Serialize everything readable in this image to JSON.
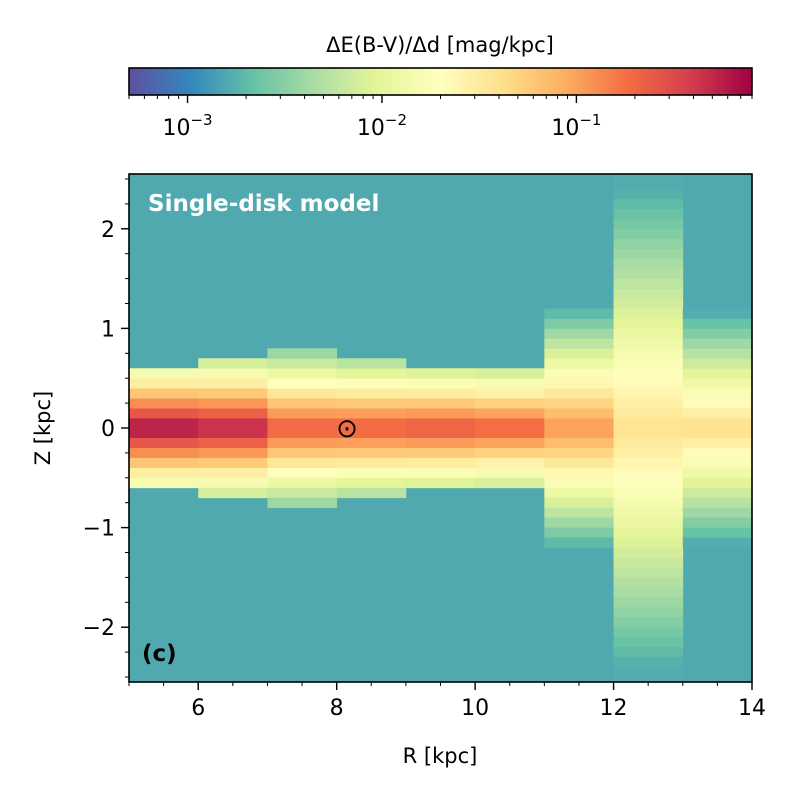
{
  "chart_data": {
    "type": "heatmap",
    "title": "",
    "xlabel": "R  [kpc]",
    "ylabel": "Z  [kpc]",
    "xlim": [
      5,
      14
    ],
    "ylim": [
      -2.55,
      2.55
    ],
    "xticks": [
      6,
      8,
      10,
      12,
      14
    ],
    "yticks": [
      -2,
      -1,
      0,
      1,
      2
    ],
    "xticklabels": [
      "6",
      "8",
      "10",
      "12",
      "14"
    ],
    "yticklabels": [
      "−2",
      "−1",
      "0",
      "1",
      "2"
    ],
    "colorbar": {
      "label": "ΔE(B-V)/Δd  [mag/kpc]",
      "scale": "log",
      "range": [
        0.0005,
        0.8
      ],
      "colormap": "Spectral_r",
      "ticks": [
        {
          "value": 0.001,
          "base": "10",
          "exp": "−3"
        },
        {
          "value": 0.01,
          "base": "10",
          "exp": "−2"
        },
        {
          "value": 0.1,
          "base": "10",
          "exp": "−1"
        }
      ]
    },
    "background_value": 0.0016,
    "r_bins": [
      {
        "r_min": 5,
        "r_max": 6,
        "midplane_value": 0.75,
        "scale_height_kpc": 0.14,
        "z_extent_kpc": 0.6
      },
      {
        "r_min": 6,
        "r_max": 7,
        "midplane_value": 0.6,
        "scale_height_kpc": 0.15,
        "z_extent_kpc": 0.65
      },
      {
        "r_min": 7,
        "r_max": 8,
        "midplane_value": 0.25,
        "scale_height_kpc": 0.18,
        "z_extent_kpc": 0.8
      },
      {
        "r_min": 8,
        "r_max": 9,
        "midplane_value": 0.25,
        "scale_height_kpc": 0.17,
        "z_extent_kpc": 0.65
      },
      {
        "r_min": 9,
        "r_max": 10,
        "midplane_value": 0.28,
        "scale_height_kpc": 0.16,
        "z_extent_kpc": 0.55
      },
      {
        "r_min": 10,
        "r_max": 11,
        "midplane_value": 0.25,
        "scale_height_kpc": 0.16,
        "z_extent_kpc": 0.55
      },
      {
        "r_min": 11,
        "r_max": 12,
        "midplane_value": 0.12,
        "scale_height_kpc": 0.28,
        "z_extent_kpc": 1.15
      },
      {
        "r_min": 12,
        "r_max": 13,
        "midplane_value": 0.04,
        "scale_height_kpc": 0.75,
        "z_extent_kpc": 2.55
      },
      {
        "r_min": 13,
        "r_max": 14,
        "midplane_value": 0.045,
        "scale_height_kpc": 0.35,
        "z_extent_kpc": 1.2
      }
    ],
    "annotations": [
      {
        "id": "model",
        "text": "Single-disk model",
        "color": "#ffffff",
        "weight": "bold"
      },
      {
        "id": "panel",
        "text": "(c)",
        "color": "#000000",
        "weight": "bold"
      }
    ],
    "sun_marker": {
      "symbol": "⊙",
      "r": 8.15,
      "z": 0
    }
  }
}
